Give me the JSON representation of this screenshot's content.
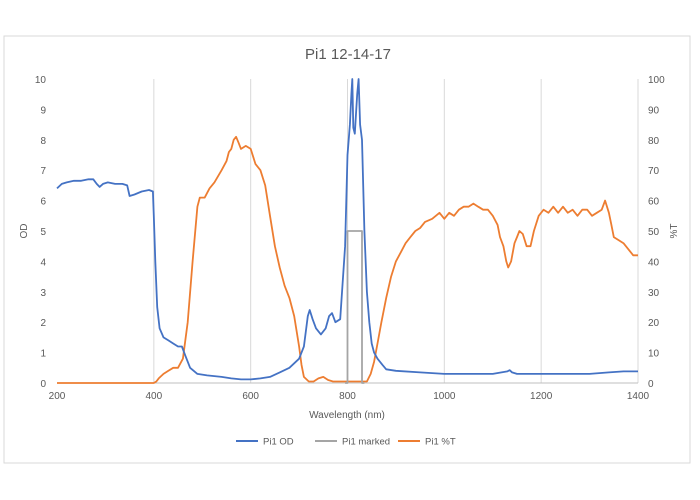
{
  "chart_data": {
    "type": "line",
    "title": "Pi1 12-14-17",
    "xlabel": "Wavelength (nm)",
    "ylabel_left": "OD",
    "ylabel_right": "%T",
    "xlim": [
      200,
      1400
    ],
    "ylim_left": [
      0,
      10
    ],
    "ylim_right": [
      0,
      100
    ],
    "grid": "vertical",
    "legend_position": "bottom",
    "x_ticks": [
      "200",
      "400",
      "600",
      "800",
      "1000",
      "1200",
      "1400"
    ],
    "y_ticks_left": [
      "0",
      "1",
      "2",
      "3",
      "4",
      "5",
      "6",
      "7",
      "8",
      "9",
      "10"
    ],
    "y_ticks_right": [
      "0",
      "10",
      "20",
      "30",
      "40",
      "50",
      "60",
      "70",
      "80",
      "90",
      "100"
    ],
    "series": [
      {
        "name": "Pi1 OD",
        "axis": "left",
        "color": "#4472C4",
        "points": [
          [
            200,
            6.4
          ],
          [
            210,
            6.55
          ],
          [
            220,
            6.6
          ],
          [
            235,
            6.65
          ],
          [
            250,
            6.65
          ],
          [
            265,
            6.7
          ],
          [
            275,
            6.7
          ],
          [
            282,
            6.55
          ],
          [
            288,
            6.45
          ],
          [
            295,
            6.55
          ],
          [
            305,
            6.6
          ],
          [
            320,
            6.55
          ],
          [
            335,
            6.55
          ],
          [
            345,
            6.5
          ],
          [
            350,
            6.15
          ],
          [
            360,
            6.2
          ],
          [
            375,
            6.3
          ],
          [
            390,
            6.35
          ],
          [
            398,
            6.3
          ],
          [
            400,
            5.5
          ],
          [
            403,
            4
          ],
          [
            407,
            2.5
          ],
          [
            412,
            1.8
          ],
          [
            420,
            1.5
          ],
          [
            430,
            1.4
          ],
          [
            440,
            1.3
          ],
          [
            450,
            1.2
          ],
          [
            458,
            1.2
          ],
          [
            465,
            0.9
          ],
          [
            475,
            0.5
          ],
          [
            490,
            0.3
          ],
          [
            510,
            0.25
          ],
          [
            540,
            0.2
          ],
          [
            560,
            0.15
          ],
          [
            580,
            0.12
          ],
          [
            600,
            0.12
          ],
          [
            620,
            0.15
          ],
          [
            640,
            0.2
          ],
          [
            660,
            0.35
          ],
          [
            680,
            0.5
          ],
          [
            700,
            0.8
          ],
          [
            710,
            1.2
          ],
          [
            718,
            2.2
          ],
          [
            722,
            2.4
          ],
          [
            728,
            2.1
          ],
          [
            735,
            1.8
          ],
          [
            745,
            1.6
          ],
          [
            755,
            1.8
          ],
          [
            762,
            2.2
          ],
          [
            768,
            2.3
          ],
          [
            775,
            2.0
          ],
          [
            785,
            2.1
          ],
          [
            795,
            4.5
          ],
          [
            800,
            7.5
          ],
          [
            805,
            8.5
          ],
          [
            808,
            9.5
          ],
          [
            810,
            10
          ],
          [
            812,
            8.4
          ],
          [
            815,
            8.2
          ],
          [
            820,
            9.5
          ],
          [
            823,
            10
          ],
          [
            826,
            8.5
          ],
          [
            830,
            8.0
          ],
          [
            835,
            5
          ],
          [
            840,
            3
          ],
          [
            845,
            2
          ],
          [
            850,
            1.3
          ],
          [
            855,
            1.0
          ],
          [
            862,
            0.8
          ],
          [
            872,
            0.6
          ],
          [
            880,
            0.45
          ],
          [
            900,
            0.4
          ],
          [
            950,
            0.35
          ],
          [
            1000,
            0.3
          ],
          [
            1050,
            0.3
          ],
          [
            1100,
            0.3
          ],
          [
            1130,
            0.38
          ],
          [
            1135,
            0.42
          ],
          [
            1140,
            0.35
          ],
          [
            1150,
            0.3
          ],
          [
            1200,
            0.3
          ],
          [
            1250,
            0.3
          ],
          [
            1300,
            0.3
          ],
          [
            1340,
            0.35
          ],
          [
            1370,
            0.38
          ],
          [
            1400,
            0.38
          ]
        ]
      },
      {
        "name": "Pi1 marked",
        "axis": "left",
        "color": "#A5A5A5",
        "points": [
          [
            795,
            0
          ],
          [
            800,
            0
          ],
          [
            800,
            5
          ],
          [
            830,
            5
          ],
          [
            830,
            0
          ],
          [
            835,
            0
          ]
        ]
      },
      {
        "name": "Pi1 %T",
        "axis": "right",
        "color": "#ED7D31",
        "points": [
          [
            200,
            0
          ],
          [
            300,
            0
          ],
          [
            400,
            0
          ],
          [
            405,
            0.5
          ],
          [
            410,
            1.5
          ],
          [
            420,
            3
          ],
          [
            430,
            4
          ],
          [
            440,
            5
          ],
          [
            450,
            5
          ],
          [
            460,
            8
          ],
          [
            470,
            20
          ],
          [
            480,
            40
          ],
          [
            490,
            58
          ],
          [
            495,
            61
          ],
          [
            505,
            61
          ],
          [
            515,
            64
          ],
          [
            525,
            66
          ],
          [
            540,
            70
          ],
          [
            550,
            73
          ],
          [
            555,
            76
          ],
          [
            560,
            77
          ],
          [
            565,
            80
          ],
          [
            570,
            81
          ],
          [
            575,
            79
          ],
          [
            580,
            77
          ],
          [
            590,
            78
          ],
          [
            600,
            77
          ],
          [
            610,
            72
          ],
          [
            620,
            70
          ],
          [
            630,
            65
          ],
          [
            640,
            55
          ],
          [
            650,
            45
          ],
          [
            660,
            38
          ],
          [
            670,
            32
          ],
          [
            680,
            28
          ],
          [
            690,
            22
          ],
          [
            700,
            12
          ],
          [
            705,
            6
          ],
          [
            710,
            2
          ],
          [
            720,
            0.5
          ],
          [
            730,
            0.5
          ],
          [
            740,
            1.5
          ],
          [
            750,
            2
          ],
          [
            760,
            1
          ],
          [
            770,
            0.5
          ],
          [
            780,
            0.5
          ],
          [
            840,
            0.5
          ],
          [
            848,
            3
          ],
          [
            855,
            7
          ],
          [
            862,
            13
          ],
          [
            870,
            20
          ],
          [
            880,
            28
          ],
          [
            890,
            35
          ],
          [
            900,
            40
          ],
          [
            910,
            43
          ],
          [
            920,
            46
          ],
          [
            930,
            48
          ],
          [
            940,
            50
          ],
          [
            950,
            51
          ],
          [
            960,
            53
          ],
          [
            975,
            54
          ],
          [
            990,
            56
          ],
          [
            1000,
            54
          ],
          [
            1010,
            56
          ],
          [
            1020,
            55
          ],
          [
            1030,
            57
          ],
          [
            1040,
            58
          ],
          [
            1050,
            58
          ],
          [
            1060,
            59
          ],
          [
            1070,
            58
          ],
          [
            1080,
            57
          ],
          [
            1090,
            57
          ],
          [
            1100,
            55
          ],
          [
            1110,
            52
          ],
          [
            1115,
            48
          ],
          [
            1122,
            45
          ],
          [
            1128,
            40
          ],
          [
            1132,
            38
          ],
          [
            1138,
            40
          ],
          [
            1145,
            46
          ],
          [
            1150,
            48
          ],
          [
            1155,
            50
          ],
          [
            1162,
            49
          ],
          [
            1170,
            45
          ],
          [
            1178,
            45
          ],
          [
            1185,
            50
          ],
          [
            1195,
            55
          ],
          [
            1205,
            57
          ],
          [
            1215,
            56
          ],
          [
            1225,
            58
          ],
          [
            1235,
            56
          ],
          [
            1245,
            58
          ],
          [
            1255,
            56
          ],
          [
            1265,
            57
          ],
          [
            1275,
            55
          ],
          [
            1285,
            57
          ],
          [
            1295,
            57
          ],
          [
            1305,
            55
          ],
          [
            1315,
            56
          ],
          [
            1325,
            57
          ],
          [
            1332,
            60
          ],
          [
            1340,
            56
          ],
          [
            1345,
            52
          ],
          [
            1350,
            48
          ],
          [
            1360,
            47
          ],
          [
            1370,
            46
          ],
          [
            1380,
            44
          ],
          [
            1390,
            42
          ],
          [
            1400,
            42
          ]
        ]
      }
    ]
  }
}
